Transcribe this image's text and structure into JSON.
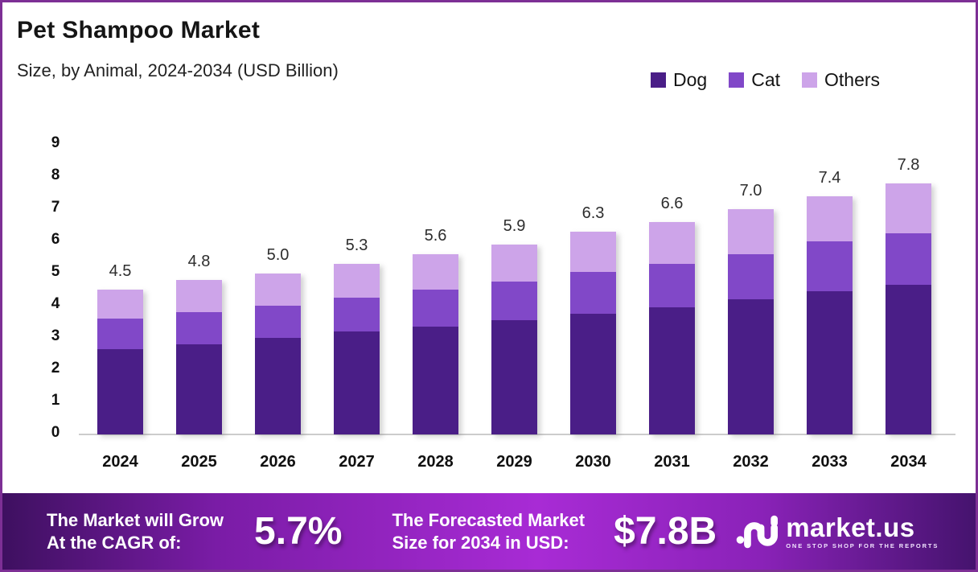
{
  "header": {
    "title": "Pet Shampoo Market",
    "subtitle": "Size, by Animal, 2024-2034 (USD Billion)"
  },
  "legend": [
    {
      "label": "Dog",
      "color": "#4a1e87"
    },
    {
      "label": "Cat",
      "color": "#8148c8"
    },
    {
      "label": "Others",
      "color": "#cda4e9"
    }
  ],
  "chart_data": {
    "type": "bar",
    "stacked": true,
    "title": "Pet Shampoo Market Size, by Animal, 2024-2034 (USD Billion)",
    "categories": [
      "2024",
      "2025",
      "2026",
      "2027",
      "2028",
      "2029",
      "2030",
      "2031",
      "2032",
      "2033",
      "2034"
    ],
    "series": [
      {
        "name": "Dog",
        "color": "#4a1e87",
        "values": [
          2.65,
          2.8,
          3.0,
          3.2,
          3.35,
          3.55,
          3.75,
          3.95,
          4.2,
          4.45,
          4.65
        ]
      },
      {
        "name": "Cat",
        "color": "#8148c8",
        "values": [
          0.95,
          1.0,
          1.0,
          1.05,
          1.15,
          1.2,
          1.3,
          1.35,
          1.4,
          1.55,
          1.6
        ]
      },
      {
        "name": "Others",
        "color": "#cda4e9",
        "values": [
          0.9,
          1.0,
          1.0,
          1.05,
          1.1,
          1.15,
          1.25,
          1.3,
          1.4,
          1.4,
          1.55
        ]
      }
    ],
    "totals": [
      "4.5",
      "4.8",
      "5.0",
      "5.3",
      "5.6",
      "5.9",
      "6.3",
      "6.6",
      "7.0",
      "7.4",
      "7.8"
    ],
    "xlabel": "",
    "ylabel": "",
    "ylim": [
      0,
      9
    ],
    "y_ticks": [
      9,
      8,
      7,
      6,
      5,
      4,
      3,
      2,
      1,
      0
    ],
    "grid": false,
    "legend_position": "top-right"
  },
  "banner": {
    "cagr_label_line1": "The Market will Grow",
    "cagr_label_line2": "At the CAGR of:",
    "cagr_value": "5.7%",
    "forecast_label_line1": "The Forecasted Market",
    "forecast_label_line2": "Size for 2034 in USD:",
    "forecast_value": "$7.8B",
    "logo_name": "market.us",
    "logo_tagline": "ONE STOP SHOP FOR THE REPORTS"
  },
  "colors": {
    "page_border": "#7d2f95",
    "axis_line": "#cccccc",
    "banner_gradient": [
      "#3e1060",
      "#a82bd5",
      "#45136e"
    ]
  }
}
